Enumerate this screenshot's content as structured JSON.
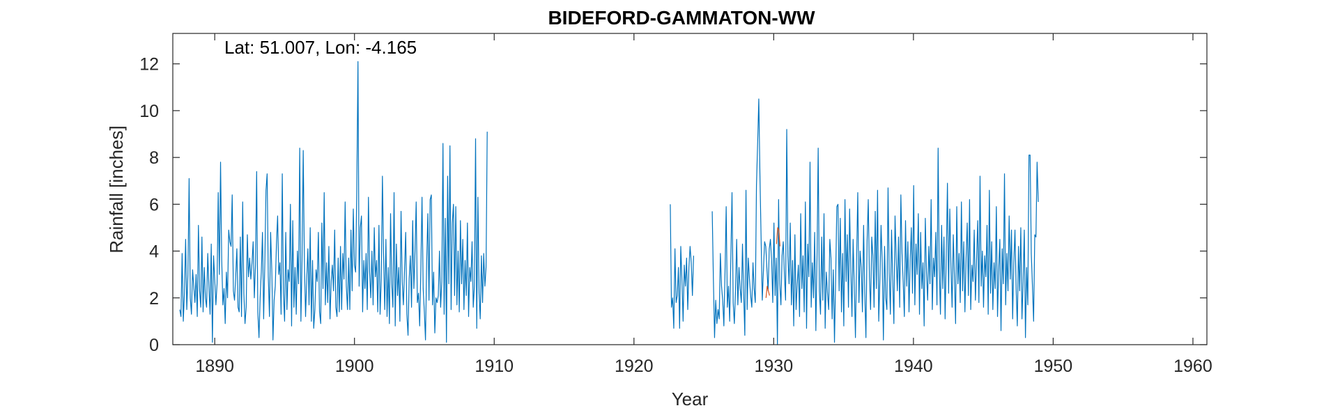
{
  "chart_data": {
    "type": "line",
    "title": "BIDEFORD-GAMMATON-WW",
    "xlabel": "Year",
    "ylabel": "Rainfall [inches]",
    "annotation": "Lat: 51.007, Lon: -4.165",
    "xlim": [
      1887,
      1961
    ],
    "ylim": [
      0,
      13.3
    ],
    "xticks": [
      1890,
      1900,
      1910,
      1920,
      1930,
      1940,
      1950,
      1960
    ],
    "yticks": [
      0,
      2,
      4,
      6,
      8,
      10,
      12
    ],
    "grid": false,
    "legend": "none",
    "colors": {
      "main": "#0072BD",
      "infilled": "#D95319",
      "axis": "#262626"
    },
    "series": [
      {
        "color": "#0072BD",
        "segments": [
          {
            "x_start": 1887.5,
            "x_step": 0.08333,
            "values": [
              1.5,
              1.2,
              3.9,
              1.0,
              2.2,
              4.5,
              1.5,
              3.0,
              7.1,
              2.0,
              1.3,
              3.2,
              2.5,
              1.8,
              3.0,
              1.2,
              5.1,
              2.3,
              1.6,
              4.6,
              1.4,
              3.3,
              2.0,
              1.6,
              3.9,
              2.5,
              1.3,
              4.3,
              0.1,
              3.8,
              2.8,
              1.7,
              2.6,
              6.5,
              3.0,
              7.8,
              3.6,
              1.7,
              2.4,
              0.9,
              3.1,
              2.0,
              4.9,
              4.4,
              4.2,
              6.4,
              2.3,
              1.9,
              2.9,
              4.1,
              1.6,
              1.4,
              4.6,
              1.2,
              6.1,
              2.2,
              0.9,
              1.6,
              4.7,
              2.9,
              3.7,
              2.8,
              3.5,
              4.4,
              2.0,
              3.4,
              7.4,
              1.4,
              0.3,
              2.0,
              3.1,
              4.8,
              1.1,
              3.5,
              6.6,
              7.3,
              2.9,
              1.2,
              4.8,
              3.2,
              0.2,
              1.9,
              2.5,
              4.3,
              5.5,
              3.0,
              3.5,
              1.3,
              7.3,
              2.2,
              1.0,
              4.8,
              1.5,
              3.2,
              2.7,
              6.0,
              0.8,
              5.3,
              1.6,
              3.3,
              1.3,
              4.0,
              2.6,
              8.4,
              1.0,
              3.6,
              8.3,
              3.5,
              1.2,
              2.8,
              4.1,
              1.7,
              5.0,
              1.0,
              3.6,
              0.7,
              1.5,
              3.2,
              2.7,
              4.8,
              1.4,
              0.9,
              5.2,
              2.4,
              6.5,
              1.7,
              3.5,
              1.8,
              4.2,
              1.1,
              2.7,
              3.4,
              2.3,
              4.9,
              1.6,
              1.2,
              3.7,
              1.4,
              4.2,
              1.5,
              3.9,
              2.8,
              6.1,
              2.5,
              1.5,
              3.7,
              1.5,
              4.9,
              2.3,
              5.8,
              3.4,
              3.1,
              6.6,
              12.1,
              2.5,
              5.0,
              5.5,
              1.4,
              3.6,
              2.4,
              3.9,
              1.5,
              6.3,
              3.1,
              2.0,
              4.0,
              1.7,
              5.0,
              2.9,
              3.6,
              1.4,
              5.1,
              1.3,
              2.8,
              7.2,
              3.8,
              1.5,
              4.5,
              1.2,
              3.3,
              0.9,
              5.6,
              2.6,
              1.6,
              6.5,
              0.8,
              4.3,
              2.1,
              3.3,
              1.0,
              5.7,
              2.7,
              1.7,
              3.2,
              4.8,
              1.3,
              0.4,
              2.8,
              3.8,
              1.6,
              5.3,
              2.4,
              4.0,
              6.1,
              1.8,
              2.2,
              0.8,
              3.2,
              6.3,
              2.4,
              1.4,
              0.2,
              3.5,
              5.6,
              1.9,
              6.2,
              6.4,
              1.7,
              3.1,
              0.5,
              2.0,
              1.8,
              2.1,
              4.0,
              1.6,
              2.7,
              8.6,
              1.3,
              5.4,
              0.1,
              7.2,
              2.6,
              8.5,
              1.5,
              5.2,
              6.0,
              2.1,
              5.9,
              1.7,
              4.0,
              1.4,
              5.3,
              2.6,
              4.5,
              1.5,
              3.6,
              2.1,
              5.2,
              1.2,
              3.3,
              2.7,
              4.4,
              1.6,
              2.5,
              8.8,
              0.7,
              6.3,
              2.2,
              1.1,
              3.8,
              1.8,
              3.9,
              2.5,
              3.3,
              9.1
            ]
          },
          {
            "x_start": 1922.6,
            "x_step": 0.08333,
            "values": [
              6.0,
              1.6,
              2.0,
              0.7,
              4.1,
              1.8,
              2.1,
              3.3,
              0.7,
              4.2,
              2.8,
              1.0,
              3.4,
              2.5,
              3.7,
              1.5,
              3.3,
              4.2,
              3.5,
              2.1,
              3.8
            ]
          },
          {
            "x_start": 1925.6,
            "x_step": 0.08333,
            "values": [
              5.7,
              2.8,
              0.3,
              1.9,
              0.9,
              1.5,
              1.1,
              3.9,
              2.5,
              1.9,
              0.8,
              3.1,
              5.9,
              1.6,
              2.5,
              1.0,
              3.7,
              6.5,
              1.8,
              0.9,
              2.3,
              4.5,
              1.7,
              3.3,
              2.4,
              1.8,
              4.3,
              2.2,
              0.4,
              6.6,
              1.5,
              3.7,
              2.8,
              2.1,
              1.6,
              3.5,
              2.4,
              1.8,
              6.8,
              8.6,
              10.5,
              7.2,
              4.5,
              1.9,
              3.2,
              4.4,
              4.2,
              3.2,
              2.3,
              4.1,
              4.5,
              3.6,
              1.8,
              5.2,
              2.1,
              3.7,
              0.0,
              6.2,
              2.6,
              1.7,
              3.8,
              4.4,
              3.0,
              1.9,
              9.2,
              3.8,
              2.6,
              5.2,
              1.7,
              3.6,
              0.8,
              4.7,
              1.5,
              2.6,
              3.4,
              1.2,
              5.6,
              2.4,
              3.8,
              1.4,
              6.1,
              0.7,
              4.3,
              2.9,
              7.8,
              1.6,
              3.5,
              2.0,
              4.8,
              0.6,
              3.7,
              8.4,
              2.3,
              1.3,
              4.6,
              1.9,
              5.6,
              0.7,
              3.1,
              2.2,
              1.5,
              4.5,
              3.7,
              1.1,
              3.2,
              0.1,
              2.8,
              5.9,
              6.0,
              2.3,
              5.4,
              1.4,
              3.9,
              0.8,
              6.2,
              2.7,
              4.7,
              1.6,
              5.8,
              3.3,
              1.2,
              4.5,
              2.5,
              0.3,
              3.7,
              6.5,
              1.8,
              4.0,
              3.3,
              1.4,
              5.1,
              2.2,
              0.3,
              4.4,
              6.2,
              2.9,
              1.5,
              4.6,
              3.8,
              1.6,
              5.7,
              2.4,
              6.6,
              1.0,
              2.8,
              5.1,
              3.5,
              0.2,
              4.2,
              2.0,
              1.5,
              6.7,
              3.1,
              1.3,
              4.9,
              2.8,
              0.9,
              5.5,
              3.7,
              2.3,
              4.6,
              1.6,
              6.4,
              3.9,
              2.7,
              1.2,
              5.3,
              2.5,
              4.4,
              1.4,
              3.6,
              5.0,
              2.2,
              6.8,
              1.7,
              4.3,
              3.0,
              5.6,
              1.3,
              4.8,
              2.4,
              3.5,
              0.8,
              5.4,
              3.1,
              1.9,
              4.2,
              2.6,
              6.2,
              1.5,
              3.7,
              2.9,
              4.8,
              1.7,
              8.4,
              3.2,
              1.3,
              5.1,
              2.4,
              4.6,
              1.1,
              3.8,
              6.9,
              2.2,
              5.8,
              3.4,
              1.6,
              4.7,
              2.9,
              0.9,
              5.9,
              2.6,
              3.9,
              1.8,
              6.1,
              2.3,
              4.4,
              1.4,
              3.7,
              5.2,
              2.1,
              6.2,
              1.5,
              3.4,
              2.7,
              4.9,
              1.9,
              3.6,
              5.3,
              1.8,
              7.2,
              2.5,
              4.0,
              1.6,
              3.8,
              2.9,
              5.1,
              1.3,
              6.6,
              2.2,
              4.4,
              1.5,
              3.5,
              2.4,
              5.9,
              1.2,
              3.2,
              4.5,
              0.6,
              4.1,
              2.6,
              7.3,
              1.7,
              3.9,
              2.3,
              5.5,
              2.8,
              4.9,
              1.1,
              3.5,
              4.9,
              2.4,
              0.8,
              4.2,
              2.3,
              5.0,
              1.1,
              2.7,
              4.9,
              0.3,
              3.3,
              1.7,
              8.1,
              8.1,
              3.9,
              2.5,
              1.0,
              4.7,
              4.6,
              7.8,
              6.1
            ]
          }
        ]
      },
      {
        "color": "#D95319",
        "segments": [
          {
            "x_start": 1929.45,
            "x_step": 0.08333,
            "values": [
              2.0,
              2.5,
              2.3,
              2.1
            ]
          },
          {
            "x_start": 1930.2,
            "x_step": 0.08333,
            "values": [
              4.3,
              5.0,
              4.9,
              4.2
            ]
          }
        ]
      }
    ]
  }
}
